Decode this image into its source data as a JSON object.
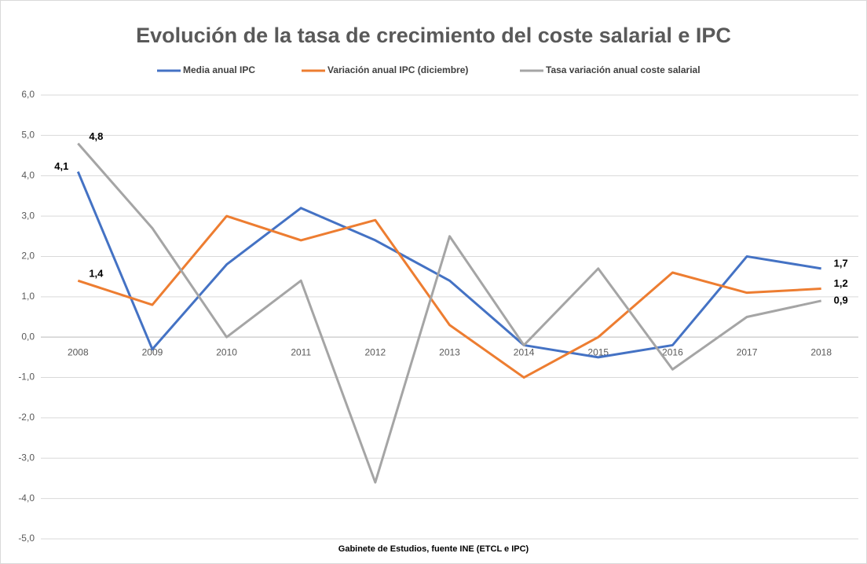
{
  "chart_data": {
    "type": "line",
    "title": "Evolución de la tasa de crecimiento del coste salarial e IPC",
    "caption": "Gabinete de Estudios, fuente INE (ETCL e IPC)",
    "categories": [
      "2008",
      "2009",
      "2010",
      "2011",
      "2012",
      "2013",
      "2014",
      "2015",
      "2016",
      "2017",
      "2018"
    ],
    "series": [
      {
        "name": "Media anual IPC",
        "color": "#4472c4",
        "values": [
          4.1,
          -0.3,
          1.8,
          3.2,
          2.4,
          1.4,
          -0.2,
          -0.5,
          -0.2,
          2.0,
          1.7
        ],
        "value_labels": [
          "4,1",
          null,
          null,
          null,
          null,
          null,
          null,
          null,
          null,
          null,
          "1,7"
        ]
      },
      {
        "name": "Variación anual IPC (diciembre)",
        "color": "#ed7d31",
        "values": [
          1.4,
          0.8,
          3.0,
          2.4,
          2.9,
          0.3,
          -1.0,
          0.0,
          1.6,
          1.1,
          1.2
        ],
        "value_labels": [
          "1,4",
          null,
          null,
          null,
          null,
          null,
          null,
          null,
          null,
          null,
          "1,2"
        ]
      },
      {
        "name": "Tasa variación anual coste salarial",
        "color": "#a5a5a5",
        "values": [
          4.8,
          2.7,
          0.0,
          1.4,
          -3.6,
          2.5,
          -0.2,
          1.7,
          -0.8,
          0.5,
          0.9
        ],
        "value_labels": [
          "4,8",
          null,
          null,
          null,
          null,
          null,
          null,
          null,
          null,
          null,
          "0,9"
        ]
      }
    ],
    "ylim": [
      -5,
      6
    ],
    "yticks": [
      {
        "value": -5,
        "label": "-5,0"
      },
      {
        "value": -4,
        "label": "-4,0"
      },
      {
        "value": -3,
        "label": "-3,0"
      },
      {
        "value": -2,
        "label": "-2,0"
      },
      {
        "value": -1,
        "label": "-1,0"
      },
      {
        "value": 0,
        "label": "0,0"
      },
      {
        "value": 1,
        "label": "1,0"
      },
      {
        "value": 2,
        "label": "2,0"
      },
      {
        "value": 3,
        "label": "3,0"
      },
      {
        "value": 4,
        "label": "4,0"
      },
      {
        "value": 5,
        "label": "5,0"
      },
      {
        "value": 6,
        "label": "6,0"
      }
    ],
    "grid": true
  }
}
